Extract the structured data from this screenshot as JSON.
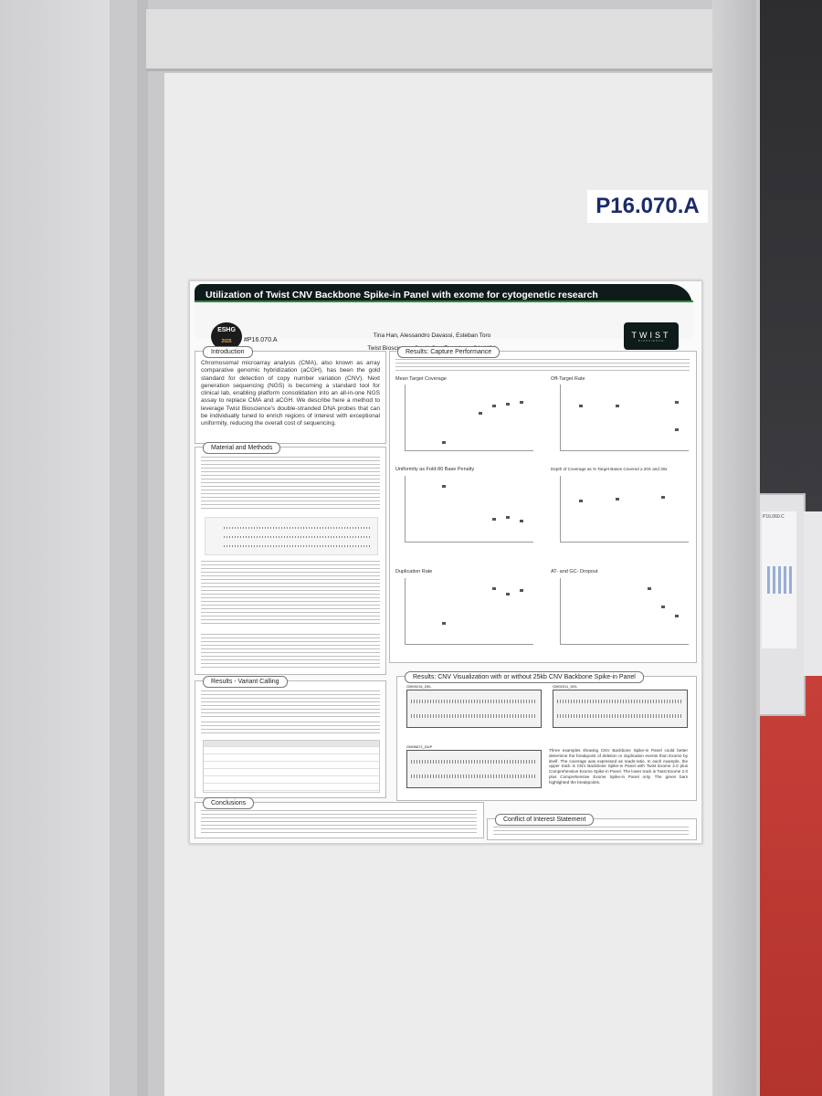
{
  "booth": {
    "poster_id_label": "P16.070.A"
  },
  "poster": {
    "title": "Utilization of Twist CNV Backbone Spike-in Panel with exome for cytogenetic research",
    "hashtag": "#P16.070.A",
    "authors": "Tina Han, Alessandro Davassi, Esteban Toro",
    "affiliation": "Twist Bioscience, South San Francisco, CA, USA",
    "logo_left": "ESHG",
    "logo_left_year": "2025",
    "logo_right": "TWIST",
    "logo_right_sub": "BIOSCIENCE",
    "sections": {
      "introduction": {
        "label": "Introduction",
        "text": "Chromosomal microarray analysis (CMA), also known as array comparative genomic hybridization (aCGH), has been the gold standard for detection of copy number variation (CNV). Next generation sequencing (NGS) is becoming a standard tool for clinical lab, enabling platform consolidation into an all-in-one NGS assay to replace CMA and aCGH. We describe here a method to leverage Twist Bioscience's double-stranded DNA probes that can be individually tuned to enrich regions of interest with exceptional uniformity, reducing the overall cost of sequencing."
      },
      "methods": {
        "label": "Material and Methods"
      },
      "variant_calling": {
        "label": "Results - Variant Calling"
      },
      "conclusions": {
        "label": "Conclusions"
      },
      "capture": {
        "label": "Results: Capture Performance",
        "charts": [
          "Mean Target Coverage",
          "Off-Target Rate",
          "Uniformity as Fold-80 Base Penalty",
          "Depth of Coverage as % Target Bases Covered ≥ 20X and 30x",
          "Duplication Rate",
          "AT- and GC- Dropout"
        ]
      },
      "cnv": {
        "label": "Results: CNV Visualization with or without 25kb CNV Backbone Spike-in Panel",
        "tracks": [
          "GM09216_DEL",
          "GM02011_DEL",
          "GM06672_DUP"
        ],
        "text": "Three examples showing CNV Backbone Spike-in Panel could better determine the breakpoint of deletion or duplication events than Exome by itself. The coverage was expressed as reads-ratio. In each example, the upper track is CNV Backbone Spike-in Panel with Twist Exome 2.0 plus Comprehensive Exome Spike-in Panel. The lower track is Twist Exome 2.0 plus Comprehensive Exome Spike-in Panel only. The green bars highlighted the breakpoints."
      },
      "conflict": {
        "label": "Conflict of Interest Statement"
      }
    }
  },
  "distant_poster": {
    "id_label": "P16.060.C"
  }
}
